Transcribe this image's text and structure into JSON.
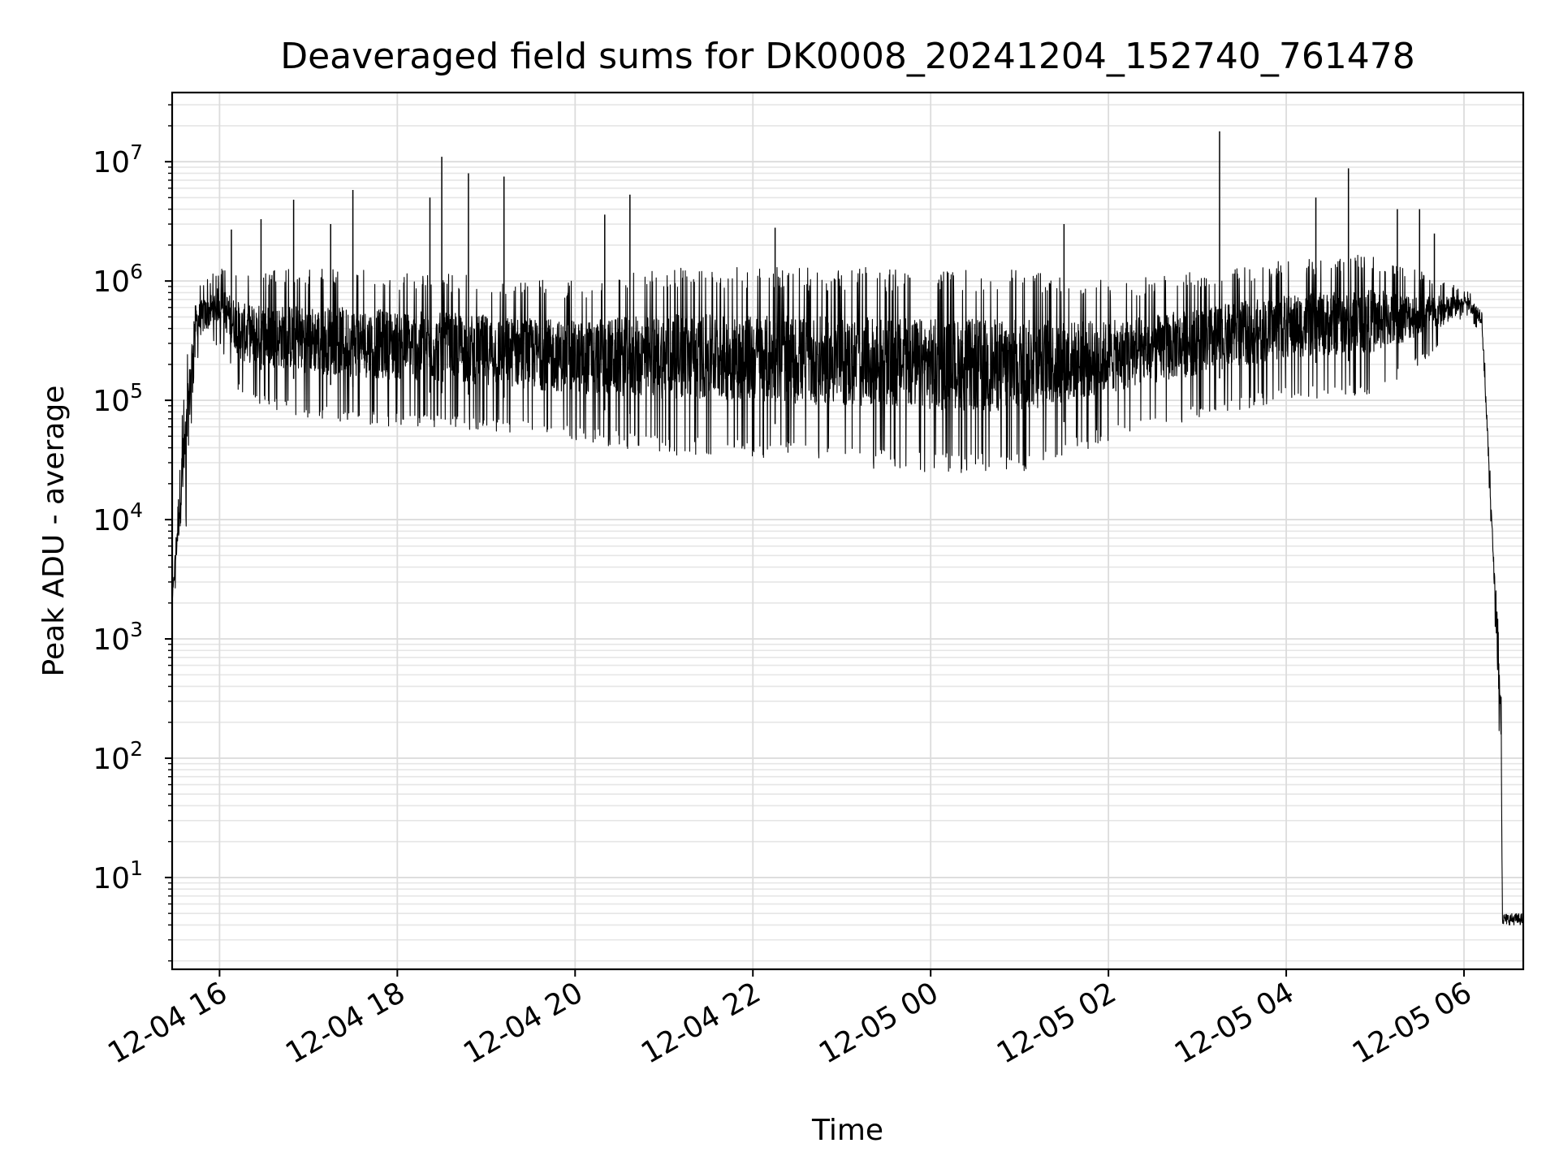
{
  "chart_data": {
    "type": "line",
    "title": "Deaveraged field sums for DK0008_20241204_152740_761478",
    "xlabel": "Time",
    "ylabel": "Peak ADU - average",
    "yscale": "log",
    "grid": true,
    "legend": "none",
    "x_range": [
      "2024-12-04 15:28",
      "2024-12-05 06:40"
    ],
    "ylim": [
      1.7,
      38000000
    ],
    "x_ticks": [
      {
        "t": "2024-12-04 16:00",
        "label": "12-04 16"
      },
      {
        "t": "2024-12-04 18:00",
        "label": "12-04 18"
      },
      {
        "t": "2024-12-04 20:00",
        "label": "12-04 20"
      },
      {
        "t": "2024-12-04 22:00",
        "label": "12-04 22"
      },
      {
        "t": "2024-12-05 00:00",
        "label": "12-05 00"
      },
      {
        "t": "2024-12-05 02:00",
        "label": "12-05 02"
      },
      {
        "t": "2024-12-05 04:00",
        "label": "12-05 04"
      },
      {
        "t": "2024-12-05 06:00",
        "label": "12-05 06"
      }
    ],
    "y_ticks": [
      {
        "value": 10,
        "base": "10",
        "exp": "1"
      },
      {
        "value": 100,
        "base": "10",
        "exp": "2"
      },
      {
        "value": 1000,
        "base": "10",
        "exp": "3"
      },
      {
        "value": 10000,
        "base": "10",
        "exp": "4"
      },
      {
        "value": 100000,
        "base": "10",
        "exp": "5"
      },
      {
        "value": 1000000,
        "base": "10",
        "exp": "6"
      },
      {
        "value": 10000000,
        "base": "10",
        "exp": "7"
      }
    ],
    "series": [
      {
        "color": "#000000",
        "envelope": [
          {
            "t": "2024-12-04 15:28",
            "low": 2000,
            "high": 2000
          },
          {
            "t": "2024-12-04 15:33",
            "low": 3500,
            "high": 50000
          },
          {
            "t": "2024-12-04 15:38",
            "low": 9000,
            "high": 250000
          },
          {
            "t": "2024-12-04 15:43",
            "low": 200000,
            "high": 900000
          },
          {
            "t": "2024-12-04 16:00",
            "low": 300000,
            "high": 1300000
          },
          {
            "t": "2024-12-04 16:15",
            "low": 100000,
            "high": 1200000
          },
          {
            "t": "2024-12-04 17:00",
            "low": 70000,
            "high": 1300000
          },
          {
            "t": "2024-12-04 18:00",
            "low": 60000,
            "high": 1200000
          },
          {
            "t": "2024-12-04 19:00",
            "low": 55000,
            "high": 1100000
          },
          {
            "t": "2024-12-04 20:00",
            "low": 45000,
            "high": 1000000
          },
          {
            "t": "2024-12-04 21:00",
            "low": 35000,
            "high": 1300000
          },
          {
            "t": "2024-12-04 22:00",
            "low": 33000,
            "high": 1300000
          },
          {
            "t": "2024-12-04 23:00",
            "low": 28000,
            "high": 1300000
          },
          {
            "t": "2024-12-05 00:00",
            "low": 25000,
            "high": 1300000
          },
          {
            "t": "2024-12-05 01:00",
            "low": 24000,
            "high": 1300000
          },
          {
            "t": "2024-12-05 02:00",
            "low": 45000,
            "high": 1000000
          },
          {
            "t": "2024-12-05 03:00",
            "low": 70000,
            "high": 1200000
          },
          {
            "t": "2024-12-05 04:00",
            "low": 100000,
            "high": 1500000
          },
          {
            "t": "2024-12-05 05:00",
            "low": 110000,
            "high": 1700000
          },
          {
            "t": "2024-12-05 05:50",
            "low": 300000,
            "high": 1000000
          },
          {
            "t": "2024-12-05 06:00",
            "low": 550000,
            "high": 850000
          },
          {
            "t": "2024-12-05 06:12",
            "low": 350000,
            "high": 700000
          },
          {
            "t": "2024-12-05 06:20",
            "low": 3000,
            "high": 6000
          },
          {
            "t": "2024-12-05 06:25",
            "low": 50,
            "high": 500
          },
          {
            "t": "2024-12-05 06:26",
            "low": 4,
            "high": 5
          },
          {
            "t": "2024-12-05 06:40",
            "low": 4,
            "high": 5
          }
        ],
        "spikes": [
          {
            "t": "2024-12-04 16:08",
            "value": 2700000
          },
          {
            "t": "2024-12-04 16:28",
            "value": 3300000
          },
          {
            "t": "2024-12-04 16:50",
            "value": 4800000
          },
          {
            "t": "2024-12-04 17:15",
            "value": 3000000
          },
          {
            "t": "2024-12-04 17:30",
            "value": 5800000
          },
          {
            "t": "2024-12-04 18:22",
            "value": 5000000
          },
          {
            "t": "2024-12-04 18:30",
            "value": 11000000
          },
          {
            "t": "2024-12-04 18:48",
            "value": 8000000
          },
          {
            "t": "2024-12-04 19:12",
            "value": 7500000
          },
          {
            "t": "2024-12-04 20:20",
            "value": 3600000
          },
          {
            "t": "2024-12-04 20:37",
            "value": 5300000
          },
          {
            "t": "2024-12-04 22:15",
            "value": 2800000
          },
          {
            "t": "2024-12-05 01:30",
            "value": 3000000
          },
          {
            "t": "2024-12-05 03:15",
            "value": 18000000
          },
          {
            "t": "2024-12-05 04:20",
            "value": 5000000
          },
          {
            "t": "2024-12-05 04:42",
            "value": 8800000
          },
          {
            "t": "2024-12-05 05:15",
            "value": 4000000
          },
          {
            "t": "2024-12-05 05:30",
            "value": 4000000
          },
          {
            "t": "2024-12-05 05:40",
            "value": 2500000
          }
        ]
      }
    ]
  }
}
